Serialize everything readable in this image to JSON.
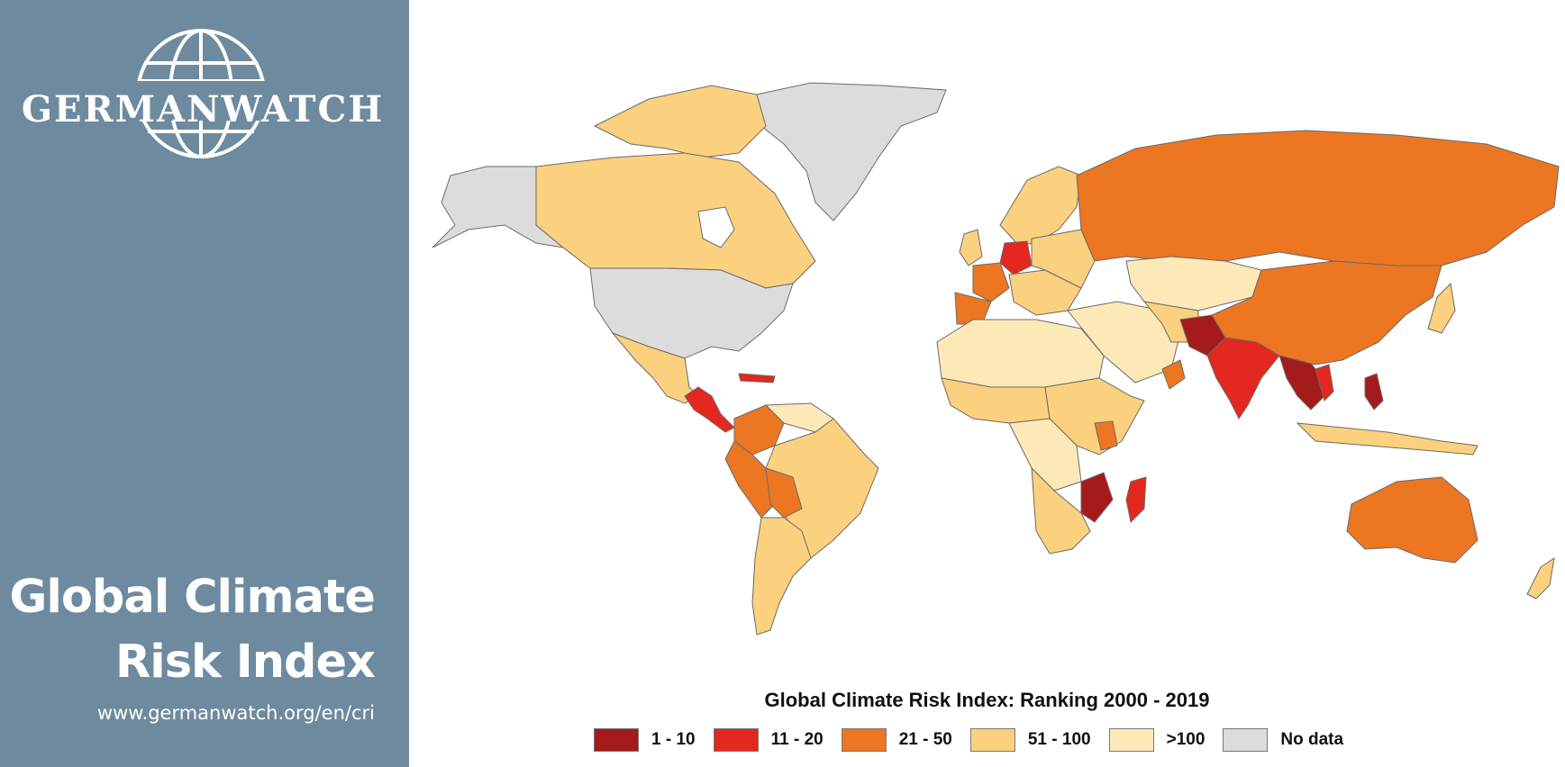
{
  "brand": {
    "logo_text": "GERMANWATCH"
  },
  "sidebar": {
    "title_line1": "Global Climate",
    "title_line2": "Risk Index",
    "url": "www.germanwatch.org/en/cri"
  },
  "colors": {
    "sidebar_bg": "#6e8a9f",
    "rank_1_10": "#a51a1a",
    "rank_11_20": "#e2281f",
    "rank_21_50": "#ec7622",
    "rank_51_100": "#fbd07e",
    "rank_over_100": "#fde9b8",
    "no_data": "#dcdcdc"
  },
  "map": {
    "title": "Global Climate Risk Index: Ranking 2000 - 2019",
    "legend": [
      {
        "label": "1 - 10",
        "color": "#a51a1a"
      },
      {
        "label": "11 - 20",
        "color": "#e2281f"
      },
      {
        "label": "21 - 50",
        "color": "#ec7622"
      },
      {
        "label": "51 - 100",
        "color": "#fbd07e"
      },
      {
        "label": ">100",
        "color": "#fde9b8"
      },
      {
        "label": "No data",
        "color": "#dcdcdc"
      }
    ]
  }
}
